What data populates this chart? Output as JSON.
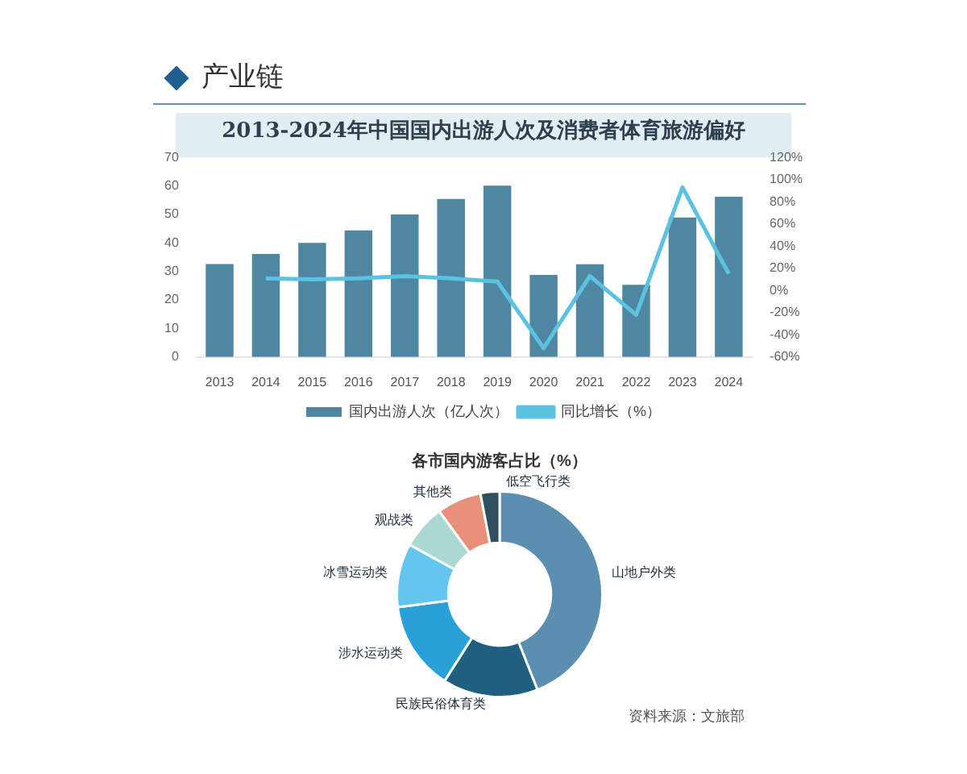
{
  "chart_data": [
    {
      "type": "bar",
      "title": "2013-2024年中国国内出游人次及消费者体育旅游偏好",
      "annotations": [
        "产业链"
      ],
      "categories": [
        "2013",
        "2014",
        "2015",
        "2016",
        "2017",
        "2018",
        "2019",
        "2020",
        "2021",
        "2022",
        "2023",
        "2024"
      ],
      "series": [
        {
          "name": "国内出游人次（亿人次）",
          "type": "bar",
          "color": "#4f87a3",
          "values": [
            32.6,
            36.1,
            40.0,
            44.4,
            50.0,
            55.4,
            60.1,
            28.8,
            32.5,
            25.3,
            48.9,
            56.2
          ]
        },
        {
          "name": "同比增长（%）",
          "type": "line",
          "axis": "y2",
          "color": "#5cc2e2",
          "values": [
            null,
            11,
            10,
            11,
            13,
            11,
            8,
            -52,
            13,
            -22,
            93,
            15
          ]
        }
      ],
      "ylim": [
        0,
        70
      ],
      "yticks": [
        0,
        10,
        20,
        30,
        40,
        50,
        60,
        70
      ],
      "y2lim": [
        -60,
        120
      ],
      "y2ticks": [
        {
          "value": -60,
          "label": "-60%"
        },
        {
          "value": -40,
          "label": "-40%"
        },
        {
          "value": -20,
          "label": "-20%"
        },
        {
          "value": 0,
          "label": "0%"
        },
        {
          "value": 20,
          "label": "20%"
        },
        {
          "value": 40,
          "label": "40%"
        },
        {
          "value": 60,
          "label": "60%"
        },
        {
          "value": 80,
          "label": "80%"
        },
        {
          "value": 100,
          "label": "100%"
        },
        {
          "value": 120,
          "label": "120%"
        }
      ],
      "grid": false,
      "legend": "bottom",
      "marker": "none",
      "line_style": "solid"
    },
    {
      "type": "donut",
      "title": "各市国内游客占比（%）",
      "annotations": [
        "资料来源：文旅部"
      ],
      "categories": [
        "山地户外类",
        "民族民俗体育类",
        "涉水运动类",
        "冰雪运动类",
        "观战类",
        "其他类",
        "低空飞行类"
      ],
      "values": [
        44,
        15,
        14,
        10,
        7,
        7,
        3
      ],
      "colors": [
        "#5b8fb0",
        "#1f5f7f",
        "#2aa0d8",
        "#62c6ee",
        "#a9d9d2",
        "#e8907a",
        "#2f4f5f"
      ],
      "legend": false
    }
  ]
}
